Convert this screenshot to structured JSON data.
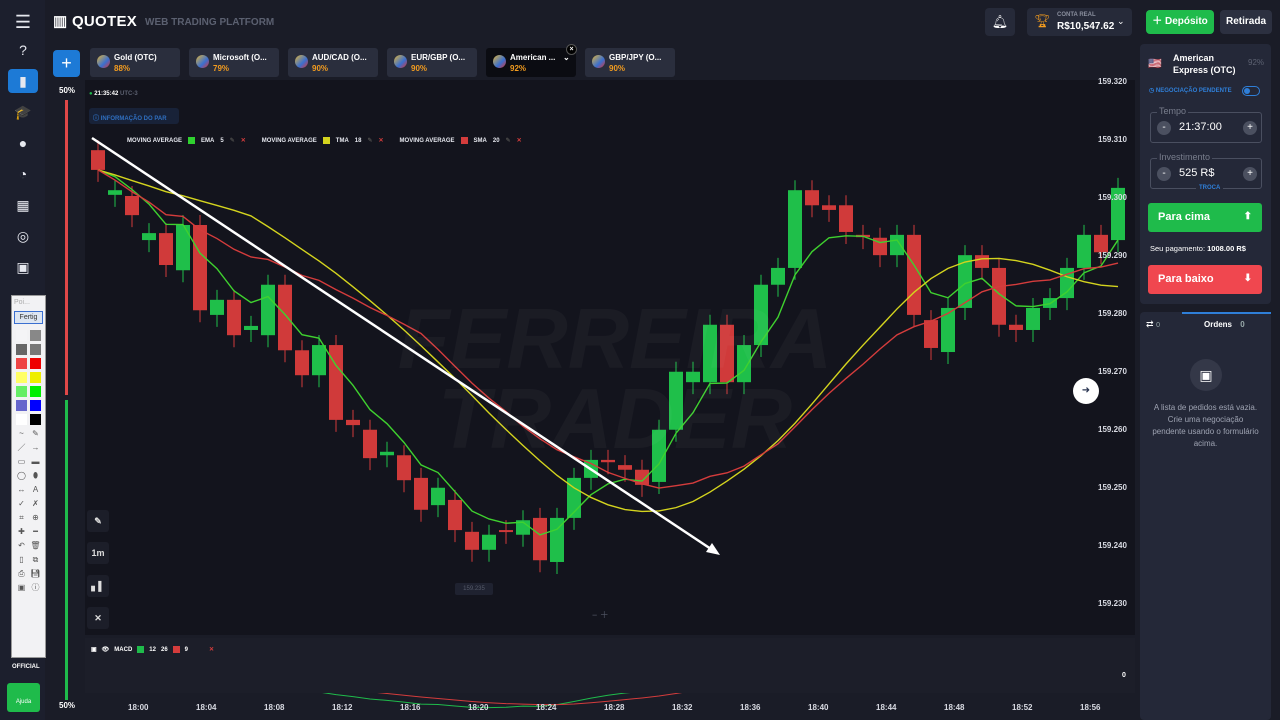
{
  "app": {
    "logo": "QUOTEX",
    "subtitle": "WEB TRADING PLATFORM"
  },
  "sidebar": {
    "items": [
      {
        "icon": "help-icon",
        "glyph": "?"
      },
      {
        "icon": "chart-icon",
        "glyph": "▮"
      },
      {
        "icon": "education-icon",
        "glyph": "🎓"
      },
      {
        "icon": "user-icon",
        "glyph": "●"
      },
      {
        "icon": "pie-icon",
        "glyph": "◔"
      },
      {
        "icon": "market-icon",
        "glyph": "▦"
      },
      {
        "icon": "signal-icon",
        "glyph": "◎"
      },
      {
        "icon": "gift-icon",
        "glyph": "▣"
      }
    ],
    "official": "OFFICIAL",
    "help": "Ajuda"
  },
  "header": {
    "account_label": "CONTA REAL",
    "balance": "R$10,547.62",
    "deposit": "Depósito",
    "withdraw": "Retirada"
  },
  "tabs": [
    {
      "name": "Gold (OTC)",
      "payout": "88%"
    },
    {
      "name": "Microsoft (O...",
      "payout": "79%"
    },
    {
      "name": "AUD/CAD (O...",
      "payout": "90%"
    },
    {
      "name": "EUR/GBP (O...",
      "payout": "90%"
    },
    {
      "name": "American ...",
      "payout": "92%",
      "active": true
    },
    {
      "name": "GBP/JPY (O...",
      "payout": "90%"
    }
  ],
  "chart": {
    "time": "21:35:42",
    "tz": "UTC-3",
    "pair_info": "INFORMAÇÃO DO PAR",
    "sentiment_top": "50%",
    "sentiment_bottom": "50%",
    "cursor_price": "159.235",
    "timeframe": "1m",
    "indicators": [
      {
        "name": "MOVING AVERAGE",
        "type": "EMA",
        "period": "5",
        "color": "#2fd12f"
      },
      {
        "name": "MOVING AVERAGE",
        "type": "TMA",
        "period": "18",
        "color": "#d4d41e"
      },
      {
        "name": "MOVING AVERAGE",
        "type": "SMA",
        "period": "20",
        "color": "#d43c3c"
      }
    ],
    "macd": {
      "label": "MACD",
      "fast": "12",
      "slow": "26",
      "signal": "9",
      "zero": "0"
    },
    "price_ticks": [
      "159.320",
      "159.310",
      "159.300",
      "159.290",
      "159.280",
      "159.270",
      "159.260",
      "159.250",
      "159.240",
      "159.230"
    ],
    "time_ticks": [
      "18:00",
      "18:04",
      "18:08",
      "18:12",
      "18:16",
      "18:20",
      "18:24",
      "18:28",
      "18:32",
      "18:36",
      "18:40",
      "18:44",
      "18:48",
      "18:52",
      "18:56"
    ],
    "watermark": "FERREIRA TRADER"
  },
  "chart_data": {
    "type": "candlestick",
    "first_time": "17:58",
    "interval": "1m",
    "up_color": "#1fbf4a",
    "down_color": "#d03a3a",
    "candles": [
      [
        159.3079,
        159.3045
      ],
      [
        159.3002,
        159.301
      ],
      [
        159.3,
        159.2967
      ],
      [
        159.2924,
        159.2936
      ],
      [
        159.2936,
        159.2881
      ],
      [
        159.2872,
        159.295
      ],
      [
        159.295,
        159.2803
      ],
      [
        159.2795,
        159.2821
      ],
      [
        159.2821,
        159.276
      ],
      [
        159.2769,
        159.2776
      ],
      [
        159.276,
        159.2847
      ],
      [
        159.2847,
        159.2734
      ],
      [
        159.2734,
        159.2691
      ],
      [
        159.2691,
        159.2743
      ],
      [
        159.2743,
        159.2614
      ],
      [
        159.2614,
        159.2605
      ],
      [
        159.2597,
        159.2548
      ],
      [
        159.2553,
        159.2559
      ],
      [
        159.2553,
        159.251
      ],
      [
        159.2514,
        159.2459
      ],
      [
        159.2467,
        159.2497
      ],
      [
        159.2476,
        159.2424
      ],
      [
        159.2421,
        159.239
      ],
      [
        159.239,
        159.2416
      ],
      [
        159.2424,
        159.2421
      ],
      [
        159.2416,
        159.2441
      ],
      [
        159.2445,
        159.2372
      ],
      [
        159.2369,
        159.2445
      ],
      [
        159.2445,
        159.2514
      ],
      [
        159.2514,
        159.2545
      ],
      [
        159.2545,
        159.2541
      ],
      [
        159.2536,
        159.2528
      ],
      [
        159.2528,
        159.2502
      ],
      [
        159.2507,
        159.2597
      ],
      [
        159.2597,
        159.2697
      ],
      [
        159.2679,
        159.2697
      ],
      [
        159.2679,
        159.2778
      ],
      [
        159.2778,
        159.2679
      ],
      [
        159.2679,
        159.2743
      ],
      [
        159.2743,
        159.2847
      ],
      [
        159.2847,
        159.2876
      ],
      [
        159.2876,
        159.301
      ],
      [
        159.301,
        159.2984
      ],
      [
        159.2984,
        159.2976
      ],
      [
        159.2984,
        159.2938
      ],
      [
        159.2933,
        159.2929
      ],
      [
        159.2928,
        159.2898
      ],
      [
        159.2898,
        159.2933
      ],
      [
        159.2933,
        159.2795
      ],
      [
        159.2786,
        159.2738
      ],
      [
        159.2731,
        159.2807
      ],
      [
        159.2807,
        159.2898
      ],
      [
        159.2898,
        159.2876
      ],
      [
        159.2876,
        159.2778
      ],
      [
        159.2778,
        159.2769
      ],
      [
        159.2769,
        159.2807
      ],
      [
        159.2807,
        159.2824
      ],
      [
        159.2824,
        159.2876
      ],
      [
        159.2876,
        159.2933
      ],
      [
        159.2933,
        159.2903
      ],
      [
        159.2924,
        159.3014
      ]
    ],
    "ylim": [
      159.23,
      159.32
    ]
  },
  "trade": {
    "asset": "American Express (OTC)",
    "payout": "92%",
    "pending": "NEGOCIAÇÃO PENDENTE",
    "time_label": "Tempo",
    "time": "21:37:00",
    "invest_label": "Investimento",
    "invest": "525 R$",
    "switch": "TROCA",
    "up": "Para cima",
    "payout_label": "Seu pagamento:",
    "payout_value": "1008.00 R$",
    "down": "Para baixo"
  },
  "orders": {
    "trades_count": "0",
    "tab": "Ordens",
    "count": "0",
    "empty1": "A lista de pedidos está vazia.",
    "empty2": "Crie uma negociação pendente usando o formulário acima."
  },
  "tools": {
    "header": "Poi...",
    "done": "Fertig"
  }
}
